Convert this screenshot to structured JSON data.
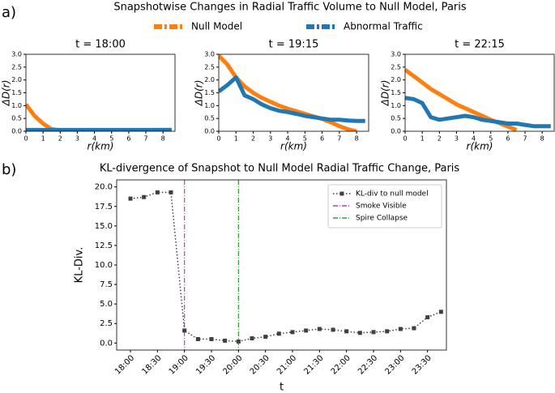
{
  "panel_labels": [
    "a)",
    "b)"
  ],
  "suptitle": "Snapshotwise Changes in Radial Traffic Volume to Null Model, Paris",
  "chart_data": [
    {
      "type": "line",
      "title": "t = 18:00",
      "xlabel": "r(km)",
      "ylabel": "ΔD(r)",
      "x": [
        0,
        0.5,
        1,
        1.5,
        2,
        2.5,
        3,
        3.5,
        4,
        4.5,
        5,
        5.5,
        6,
        6.5,
        7,
        7.5,
        8,
        8.5
      ],
      "xlim": [
        0,
        8.7
      ],
      "ylim": [
        0,
        3.0
      ],
      "xticks": [
        0,
        1,
        2,
        3,
        4,
        5,
        6,
        7,
        8
      ],
      "yticks": [
        {
          "value": 0,
          "label": "0.0"
        },
        0.5,
        {
          "value": 1,
          "label": "1.0"
        },
        1.5,
        {
          "value": 2,
          "label": "2.0"
        },
        2.5,
        {
          "value": 3,
          "label": "3.0"
        }
      ],
      "series": [
        {
          "name": "Null Model",
          "color": "#ff7f0e",
          "values": [
            1.05,
            0.6,
            0.3,
            0.08,
            0.04,
            0.04,
            0.04,
            0.04,
            0.05,
            0.04,
            0.04,
            0.04,
            0.04,
            0.04,
            0.04,
            0.05,
            0.05,
            0.05
          ]
        },
        {
          "name": "Abnormal Traffic",
          "color": "#1f77b4",
          "values": [
            0.05,
            0.05,
            0.05,
            0.05,
            0.05,
            0.05,
            0.05,
            0.05,
            0.05,
            0.05,
            0.05,
            0.05,
            0.05,
            0.05,
            0.05,
            0.05,
            0.05,
            0.05
          ]
        }
      ]
    },
    {
      "type": "line",
      "title": "t = 19:15",
      "xlabel": "r(km)",
      "ylabel": "ΔD(r)",
      "x": [
        0,
        0.5,
        1,
        1.5,
        2,
        2.5,
        3,
        3.5,
        4,
        4.5,
        5,
        5.5,
        6,
        6.5,
        7,
        7.5,
        8,
        8.5
      ],
      "xlim": [
        0,
        8.7
      ],
      "ylim": [
        0,
        3.0
      ],
      "xticks": [
        0,
        1,
        2,
        3,
        4,
        5,
        6,
        7,
        8
      ],
      "yticks": [
        {
          "value": 0,
          "label": "0.0"
        },
        0.5,
        {
          "value": 1,
          "label": "1.0"
        },
        1.5,
        {
          "value": 2,
          "label": "2.0"
        },
        2.5,
        {
          "value": 3,
          "label": "3.0"
        }
      ],
      "series": [
        {
          "color": "#ff7f0e",
          "values": [
            2.95,
            2.6,
            2.1,
            1.75,
            1.5,
            1.3,
            1.15,
            1.0,
            0.88,
            0.78,
            0.68,
            0.58,
            0.48,
            0.35,
            0.2,
            0.08,
            0.0,
            null
          ]
        },
        {
          "color": "#1f77b4",
          "values": [
            1.55,
            1.8,
            2.1,
            1.4,
            1.25,
            1.05,
            0.9,
            0.8,
            0.75,
            0.68,
            0.6,
            0.55,
            0.5,
            0.45,
            0.45,
            0.42,
            0.4,
            0.4
          ]
        }
      ]
    },
    {
      "type": "line",
      "title": "t = 22:15",
      "xlabel": "r(km)",
      "ylabel": "ΔD(r)",
      "x": [
        0,
        0.5,
        1,
        1.5,
        2,
        2.5,
        3,
        3.5,
        4,
        4.5,
        5,
        5.5,
        6,
        6.5,
        7,
        7.5,
        8,
        8.5
      ],
      "xlim": [
        0,
        8.7
      ],
      "ylim": [
        0,
        3.0
      ],
      "xticks": [
        0,
        1,
        2,
        3,
        4,
        5,
        6,
        7,
        8
      ],
      "yticks": [
        {
          "value": 0,
          "label": "0.0"
        },
        0.5,
        {
          "value": 1,
          "label": "1.0"
        },
        1.5,
        {
          "value": 2,
          "label": "2.0"
        },
        2.5,
        {
          "value": 3,
          "label": "3.0"
        }
      ],
      "series": [
        {
          "color": "#ff7f0e",
          "values": [
            2.4,
            2.15,
            1.9,
            1.65,
            1.45,
            1.25,
            1.05,
            0.9,
            0.75,
            0.6,
            0.45,
            0.32,
            0.18,
            0.05,
            null,
            null,
            null,
            null
          ]
        },
        {
          "color": "#1f77b4",
          "values": [
            1.3,
            1.25,
            1.1,
            0.55,
            0.45,
            0.5,
            0.55,
            0.6,
            0.55,
            0.45,
            0.4,
            0.35,
            0.3,
            0.3,
            0.25,
            0.2,
            0.2,
            0.2
          ]
        }
      ]
    },
    {
      "type": "category_line",
      "title": "KL-divergence of Snapshot to Null Model Radial Traffic Change, Paris",
      "xlabel": "t",
      "ylabel": "KL-Div.",
      "categories": [
        "18:00",
        null,
        "18:30",
        null,
        "19:00",
        null,
        "19:30",
        null,
        "20:00",
        null,
        "20:30",
        null,
        "21:00",
        null,
        "21:30",
        null,
        "22:00",
        null,
        "22:30",
        null,
        "23:00",
        null,
        "23:30",
        null
      ],
      "ylim": [
        -0.9,
        20.9
      ],
      "yticks": [
        {
          "value": 0,
          "label": "0.0"
        },
        2.5,
        {
          "value": 5,
          "label": "5.0"
        },
        7.5,
        {
          "value": 10,
          "label": "10.0"
        },
        12.5,
        {
          "value": 15,
          "label": "15.0"
        },
        17.5,
        {
          "value": 20,
          "label": "20.0"
        }
      ],
      "series": [
        {
          "name": "KL-div to null model",
          "color": "#404040",
          "values": [
            18.5,
            18.7,
            19.3,
            19.3,
            1.6,
            0.5,
            0.5,
            0.3,
            0.2,
            0.6,
            0.8,
            1.2,
            1.4,
            1.6,
            1.8,
            1.7,
            1.5,
            1.3,
            1.4,
            1.5,
            1.8,
            1.9,
            3.3,
            4.0
          ]
        }
      ],
      "vlines": [
        {
          "name": "Smoke Visible",
          "at": "19:00",
          "color": "#bf40bf"
        },
        {
          "name": "Spire Collapse",
          "at": "20:00",
          "color": "#2ca02c"
        }
      ],
      "legend": "upper right"
    }
  ]
}
